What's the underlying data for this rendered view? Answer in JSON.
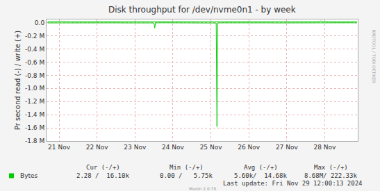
{
  "chart_data": {
    "type": "line",
    "title": "Disk throughput for /dev/nvme0n1 - by week",
    "y_label": "Pr second read (-) / write (+)",
    "x": [
      20.7,
      20.9,
      21.1,
      21.3,
      21.5,
      21.7,
      21.9,
      22.1,
      22.3,
      22.5,
      22.7,
      22.9,
      23.1,
      23.3,
      23.5,
      23.52,
      23.54,
      23.7,
      23.9,
      24.1,
      24.3,
      24.5,
      24.7,
      24.9,
      25.1,
      25.14,
      25.16,
      25.18,
      25.3,
      25.5,
      25.7,
      25.9,
      26.1,
      26.3,
      26.5,
      26.7,
      26.9,
      27.1,
      27.3,
      27.5,
      27.7,
      27.9,
      28.1,
      28.3,
      28.5,
      28.7,
      28.85
    ],
    "series": [
      {
        "name": "Bytes",
        "color": "#00cc00",
        "values": [
          14000,
          16000,
          22000,
          15000,
          13000,
          14000,
          15000,
          16000,
          14000,
          15000,
          13000,
          14000,
          15000,
          16000,
          14000,
          15000,
          14000,
          15000,
          13000,
          14000,
          15000,
          16000,
          14000,
          15000,
          14000,
          15000,
          16000,
          15000,
          14000,
          15000,
          13000,
          14000,
          15000,
          14000,
          16000,
          15000,
          14000,
          15000,
          14000,
          15000,
          16000,
          26000,
          15000,
          14000,
          15000,
          14000,
          16000
        ]
      },
      {
        "color": "#00cc00",
        "values": [
          -3000,
          -2000,
          -4000,
          -2000,
          -1000,
          -2000,
          -3000,
          -2000,
          -1000,
          -2000,
          -3000,
          -2000,
          -1000,
          -2000,
          -3000,
          -80000,
          -2000,
          -1000,
          -2000,
          -3000,
          -2000,
          -1000,
          -2000,
          -3000,
          -2000,
          -4000,
          -1580000,
          -3000,
          -2000,
          -1000,
          -2000,
          -3000,
          -2000,
          -1000,
          -2000,
          -3000,
          -2000,
          -1000,
          -2000,
          -3000,
          -2000,
          -1000,
          -2000,
          -3000,
          -2000,
          -1000,
          -2000
        ]
      }
    ],
    "xlim": [
      20.67,
      28.87
    ],
    "xticks": [
      {
        "value": 21,
        "label": "21 Nov"
      },
      {
        "value": 22,
        "label": "22 Nov"
      },
      {
        "value": 23,
        "label": "23 Nov"
      },
      {
        "value": 24,
        "label": "24 Nov"
      },
      {
        "value": 25,
        "label": "25 Nov"
      },
      {
        "value": 26,
        "label": "26 Nov"
      },
      {
        "value": 27,
        "label": "27 Nov"
      },
      {
        "value": 28,
        "label": "28 Nov"
      }
    ],
    "ylim": [
      -1800000,
      50000
    ],
    "yticks": [
      {
        "value": 0,
        "label": "0.0"
      },
      {
        "value": -200000,
        "label": "-0.2 M"
      },
      {
        "value": -400000,
        "label": "-0.4 M"
      },
      {
        "value": -600000,
        "label": "-0.6 M"
      },
      {
        "value": -800000,
        "label": "-0.8 M"
      },
      {
        "value": -1000000,
        "label": "-1.0 M"
      },
      {
        "value": -1200000,
        "label": "-1.2 M"
      },
      {
        "value": -1400000,
        "label": "-1.4 M"
      },
      {
        "value": -1600000,
        "label": "-1.6 M"
      },
      {
        "value": -1800000,
        "label": "-1.8 M"
      }
    ],
    "grid": true,
    "legend_table": {
      "headers": [
        "Cur (-/+)",
        "Min (-/+)",
        "Avg (-/+)",
        "Max (-/+)"
      ],
      "cells": [
        "2.28 /  16.10k",
        "0.00 /   5.75k",
        "5.60k/  14.68k",
        "8.68M/ 222.33k"
      ]
    },
    "last_update": "Last update: Fri Nov 29 12:00:13 2024",
    "footer": "Munin 2.0.75",
    "watermark": "RRDTOOL / TOBI OETIKER"
  }
}
